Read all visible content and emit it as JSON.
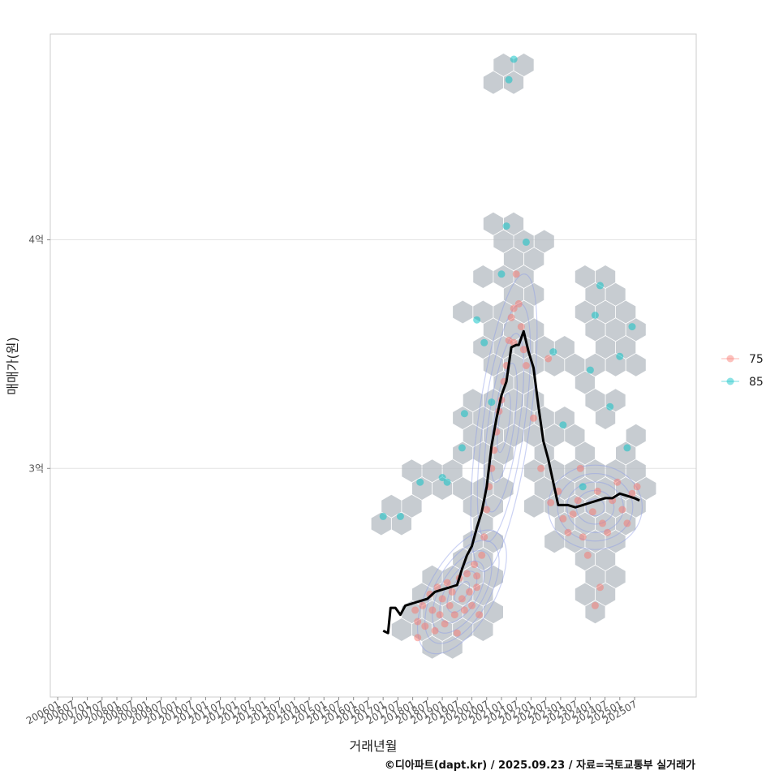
{
  "chart_data": {
    "type": "scatter",
    "xlabel": "거래년월",
    "ylabel": "매매가(원)",
    "caption": "©디아파트(dapt.kr) / 2025.09.23 / 자료=국토교통부 실거래가",
    "x_ticks": [
      "200601",
      "200607",
      "200701",
      "200707",
      "200801",
      "200807",
      "200901",
      "200907",
      "201001",
      "201007",
      "201101",
      "201107",
      "201201",
      "201207",
      "201301",
      "201307",
      "201401",
      "201407",
      "201501",
      "201507",
      "201601",
      "201607",
      "201701",
      "201707",
      "201801",
      "201807",
      "201901",
      "201907",
      "202001",
      "202007",
      "202101",
      "202107",
      "202201",
      "202207",
      "202301",
      "202307",
      "202401",
      "202407",
      "202501",
      "202507"
    ],
    "x_range": [
      "2005-10",
      "2027-08"
    ],
    "y_ticks": [
      {
        "label": "3억",
        "value": 300000000
      },
      {
        "label": "4억",
        "value": 400000000
      }
    ],
    "ylim": [
      200000000,
      490000000
    ],
    "grid": true,
    "legend": {
      "position": "right",
      "entries": [
        {
          "label": "75",
          "color": "#F8766D"
        },
        {
          "label": "85",
          "color": "#00BFC4"
        }
      ]
    },
    "colors": {
      "s75": "#F8766D",
      "s85": "#00BFC4",
      "trend": "#000000",
      "hex": "#B4BBC2",
      "contour": "#8C9BE6"
    },
    "trend": {
      "name": "",
      "x": [
        "2017-01",
        "2017-03",
        "2017-04",
        "2017-06",
        "2017-08",
        "2017-10",
        "2018-01",
        "2018-04",
        "2018-07",
        "2018-10",
        "2019-01",
        "2019-04",
        "2019-07",
        "2019-09",
        "2019-11",
        "2020-01",
        "2020-03",
        "2020-05",
        "2020-07",
        "2020-09",
        "2020-11",
        "2021-01",
        "2021-03",
        "2021-05",
        "2021-07",
        "2021-08",
        "2021-10",
        "2021-12",
        "2022-02",
        "2022-04",
        "2022-06",
        "2022-08",
        "2022-10",
        "2022-12",
        "2023-02",
        "2023-04",
        "2023-07",
        "2023-10",
        "2024-01",
        "2024-04",
        "2024-07",
        "2024-10",
        "2025-01",
        "2025-04",
        "2025-07",
        "2025-09"
      ],
      "y": [
        229,
        228,
        239,
        239,
        236,
        240,
        241,
        242,
        243,
        246,
        247,
        248,
        249,
        256,
        262,
        266,
        274,
        281,
        292,
        310,
        322,
        332,
        338,
        353,
        354,
        354,
        360,
        351,
        344,
        327,
        312,
        304,
        294,
        284,
        284,
        284,
        283,
        284,
        285,
        286,
        287,
        287,
        289,
        288,
        287,
        286
      ]
    },
    "series": [
      {
        "name": "75",
        "points": [
          [
            "2018-02",
            238
          ],
          [
            "2018-03",
            233
          ],
          [
            "2018-05",
            240
          ],
          [
            "2018-06",
            231
          ],
          [
            "2018-08",
            245
          ],
          [
            "2018-09",
            238
          ],
          [
            "2018-10",
            229
          ],
          [
            "2018-11",
            248
          ],
          [
            "2018-12",
            236
          ],
          [
            "2019-01",
            243
          ],
          [
            "2019-02",
            232
          ],
          [
            "2019-03",
            250
          ],
          [
            "2019-04",
            240
          ],
          [
            "2019-05",
            246
          ],
          [
            "2019-06",
            236
          ],
          [
            "2019-07",
            228
          ],
          [
            "2019-08",
            252
          ],
          [
            "2019-09",
            243
          ],
          [
            "2019-10",
            238
          ],
          [
            "2019-11",
            254
          ],
          [
            "2019-12",
            246
          ],
          [
            "2020-01",
            240
          ],
          [
            "2020-02",
            258
          ],
          [
            "2020-03",
            248
          ],
          [
            "2020-04",
            236
          ],
          [
            "2020-05",
            262
          ],
          [
            "2020-06",
            270
          ],
          [
            "2020-07",
            282
          ],
          [
            "2020-08",
            292
          ],
          [
            "2020-09",
            300
          ],
          [
            "2020-10",
            308
          ],
          [
            "2020-11",
            316
          ],
          [
            "2020-12",
            325
          ],
          [
            "2021-01",
            330
          ],
          [
            "2021-02",
            338
          ],
          [
            "2021-03",
            345
          ],
          [
            "2021-04",
            356
          ],
          [
            "2021-05",
            366
          ],
          [
            "2021-06",
            370
          ],
          [
            "2021-07",
            385
          ],
          [
            "2021-08",
            372
          ],
          [
            "2021-09",
            362
          ],
          [
            "2021-10",
            352
          ],
          [
            "2021-11",
            345
          ],
          [
            "2022-02",
            322
          ],
          [
            "2022-05",
            300
          ],
          [
            "2022-09",
            285
          ],
          [
            "2022-12",
            290
          ],
          [
            "2023-02",
            278
          ],
          [
            "2023-04",
            272
          ],
          [
            "2023-06",
            280
          ],
          [
            "2023-08",
            286
          ],
          [
            "2023-10",
            270
          ],
          [
            "2023-12",
            262
          ],
          [
            "2024-02",
            281
          ],
          [
            "2024-04",
            290
          ],
          [
            "2024-06",
            276
          ],
          [
            "2024-08",
            272
          ],
          [
            "2024-10",
            286
          ],
          [
            "2024-12",
            294
          ],
          [
            "2025-02",
            282
          ],
          [
            "2025-04",
            276
          ],
          [
            "2025-06",
            289
          ],
          [
            "2025-08",
            292
          ],
          [
            "2023-09",
            300
          ],
          [
            "2024-03",
            240
          ],
          [
            "2024-05",
            248
          ],
          [
            "2018-03",
            226
          ],
          [
            "2020-03",
            253
          ],
          [
            "2021-06",
            355
          ],
          [
            "2022-08",
            348
          ]
        ]
      },
      {
        "name": "85",
        "points": [
          [
            "2017-01",
            279
          ],
          [
            "2017-08",
            279
          ],
          [
            "2018-04",
            294
          ],
          [
            "2019-01",
            296
          ],
          [
            "2019-03",
            294
          ],
          [
            "2019-09",
            309
          ],
          [
            "2019-10",
            324
          ],
          [
            "2020-03",
            365
          ],
          [
            "2020-06",
            355
          ],
          [
            "2021-04",
            470
          ],
          [
            "2021-06",
            479
          ],
          [
            "2021-03",
            406
          ],
          [
            "2021-01",
            385
          ],
          [
            "2021-11",
            399
          ],
          [
            "2022-10",
            351
          ],
          [
            "2023-02",
            319
          ],
          [
            "2024-01",
            343
          ],
          [
            "2024-03",
            367
          ],
          [
            "2024-05",
            380
          ],
          [
            "2024-09",
            327
          ],
          [
            "2025-01",
            349
          ],
          [
            "2025-06",
            362
          ],
          [
            "2025-04",
            309
          ],
          [
            "2020-09",
            329
          ],
          [
            "2023-10",
            292
          ]
        ]
      }
    ]
  }
}
